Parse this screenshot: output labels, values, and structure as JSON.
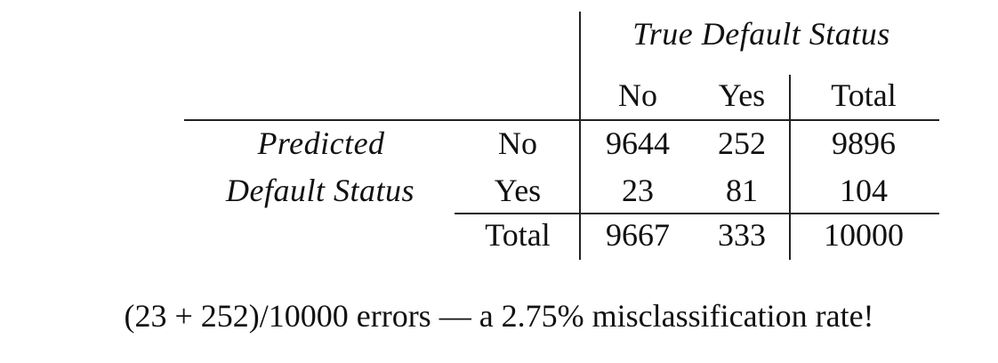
{
  "table": {
    "col_group_header": "True Default Status",
    "row_group_header_line1": "Predicted",
    "row_group_header_line2": "Default Status",
    "col_headers": [
      "No",
      "Yes",
      "Total"
    ],
    "rows": [
      {
        "label": "No",
        "cells": [
          "9644",
          "252",
          "9896"
        ]
      },
      {
        "label": "Yes",
        "cells": [
          "23",
          "81",
          "104"
        ]
      },
      {
        "label": "Total",
        "cells": [
          "9667",
          "333",
          "10000"
        ]
      }
    ]
  },
  "caption": "(23 + 252)/10000 errors — a 2.75% misclassification rate!"
}
